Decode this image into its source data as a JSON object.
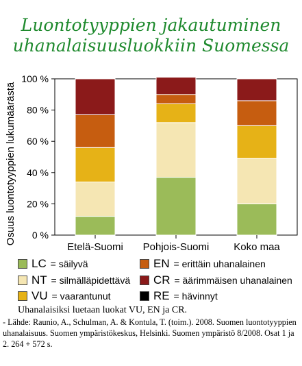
{
  "title_line1": "Luontotyyppien jakautuminen",
  "title_line2": "uhanalaisuusluokkiin Suomessa",
  "chart_data": {
    "type": "bar",
    "stacked": true,
    "categories": [
      "Etelä-Suomi",
      "Pohjois-Suomi",
      "Koko maa"
    ],
    "ylabel": "Osuus luontotyyppien lukumäärästä",
    "ylim": [
      0,
      100
    ],
    "yticks": [
      "0 %",
      "20 %",
      "40 %",
      "60 %",
      "80 %",
      "100 %"
    ],
    "series": [
      {
        "name": "LC",
        "color": "#9bbb59",
        "values": [
          12,
          37,
          20
        ]
      },
      {
        "name": "NT",
        "color": "#f5e6b3",
        "values": [
          22,
          35,
          29
        ]
      },
      {
        "name": "VU",
        "color": "#e6b217",
        "values": [
          22,
          12,
          21
        ]
      },
      {
        "name": "EN",
        "color": "#c65d10",
        "values": [
          21,
          6,
          16
        ]
      },
      {
        "name": "CR",
        "color": "#8b1a1a",
        "values": [
          23,
          11,
          14
        ]
      },
      {
        "name": "RE",
        "color": "#000000",
        "values": [
          0,
          0,
          0
        ]
      }
    ],
    "grid": false
  },
  "legend": [
    {
      "code": "LC",
      "text": " = säilyvä",
      "color": "#9bbb59"
    },
    {
      "code": "EN",
      "text": " = erittäin uhanalainen",
      "color": "#c65d10"
    },
    {
      "code": "NT",
      "text": " = silmälläpidettävä",
      "color": "#f5e6b3"
    },
    {
      "code": "CR",
      "text": " = äärimmäisen uhanalainen",
      "color": "#8b1a1a"
    },
    {
      "code": "VU",
      "text": " = vaarantunut",
      "color": "#e6b217"
    },
    {
      "code": "RE",
      "text": " = hävinnyt",
      "color": "#000000"
    }
  ],
  "note": "Uhanalaisiksi luetaan luokat VU, EN ja CR.",
  "source": "- Lähde: Raunio, A., Schulman, A. & Kontula, T. (toim.). 2008. Suomen luontotyyppien uhanalaisuus. Suomen ympäristökeskus, Helsinki. Suomen ympäristö 8/2008. Osat 1 ja 2. 264 + 572 s."
}
